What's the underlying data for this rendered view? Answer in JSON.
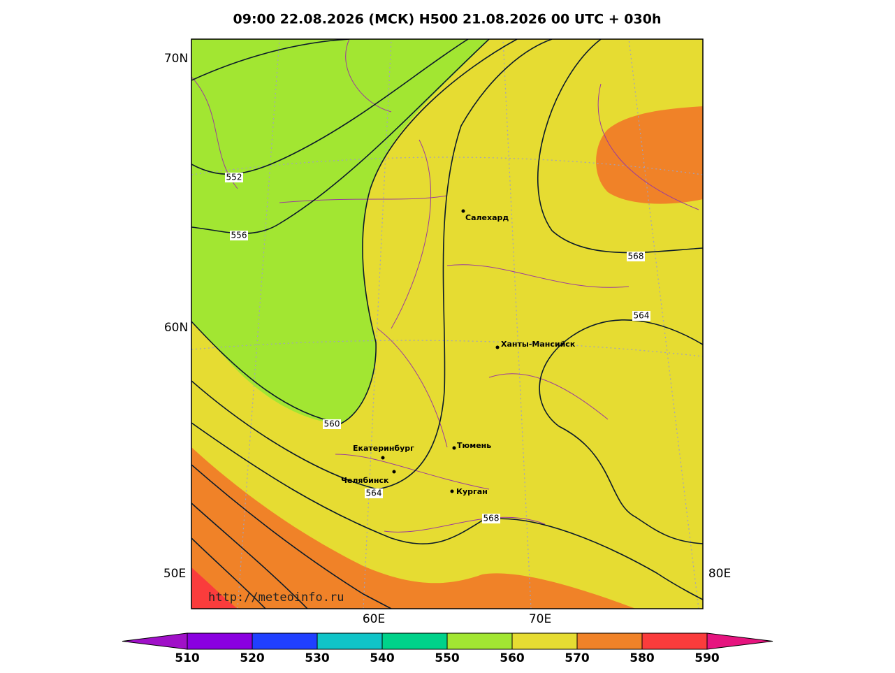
{
  "title": "09:00 22.08.2026 (МСК) H500  21.08.2026 00 UTC + 030h",
  "lat_labels": [
    "70N",
    "60N"
  ],
  "lon_labels": [
    "50E",
    "60E",
    "70E",
    "80E"
  ],
  "contour_labels": [
    552,
    556,
    560,
    564,
    568,
    568,
    564
  ],
  "cities": [
    "Салехард",
    "Ханты-Мансийск",
    "Екатеринбург",
    "Тюмень",
    "Челябинск",
    "Курган"
  ],
  "watermark": "http://meteoinfo.ru",
  "colorbar": {
    "ticks": [
      510,
      520,
      530,
      540,
      550,
      560,
      570,
      580,
      590
    ],
    "colors": [
      "#8a00e0",
      "#2040ff",
      "#10c4c8",
      "#00d28a",
      "#a2e632",
      "#e6dc32",
      "#f08228",
      "#fa3c3c"
    ],
    "under_color": "#a010c8",
    "over_color": "#e6147f"
  }
}
